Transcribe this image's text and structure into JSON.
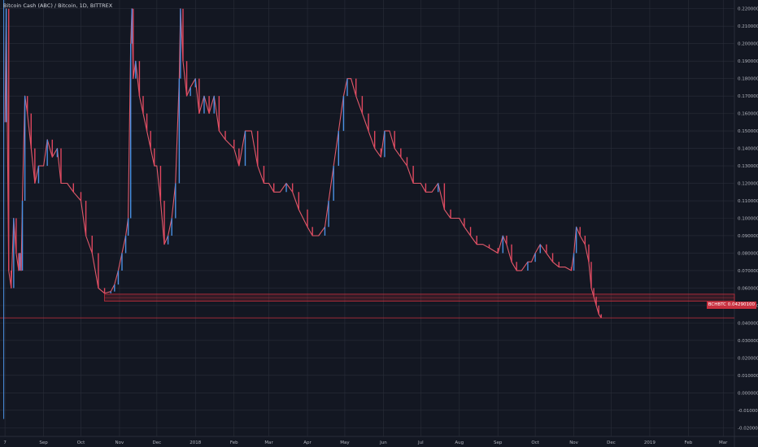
{
  "legend": "Bitcoin Cash (ABC) / Bitcoin, 1D, BITTREX",
  "price_tag": {
    "symbol": "BCHBTC",
    "value": "0.04290100"
  },
  "colors": {
    "background": "#131722",
    "grid": "#2a2e39",
    "up": "#4a90e2",
    "down": "#e0465e",
    "line": "#e05a6b",
    "zone": "#c8303f",
    "text": "#b2b5be"
  },
  "chart_data": {
    "type": "line",
    "title": "Bitcoin Cash (ABC) / Bitcoin, 1D, BITTREX",
    "xlabel": "",
    "ylabel": "",
    "y_range": [
      -0.025,
      0.225
    ],
    "x_range": [
      "2017-07-28",
      "2019-03-10"
    ],
    "x_ticks": [
      {
        "label": "7",
        "date": "2017-08-01"
      },
      {
        "label": "Sep",
        "date": "2017-09-01"
      },
      {
        "label": "Oct",
        "date": "2017-10-01"
      },
      {
        "label": "Nov",
        "date": "2017-11-01"
      },
      {
        "label": "Dec",
        "date": "2017-12-01"
      },
      {
        "label": "2018",
        "date": "2018-01-01"
      },
      {
        "label": "Feb",
        "date": "2018-02-01"
      },
      {
        "label": "Mar",
        "date": "2018-03-01"
      },
      {
        "label": "Apr",
        "date": "2018-04-01"
      },
      {
        "label": "May",
        "date": "2018-05-01"
      },
      {
        "label": "Jun",
        "date": "2018-06-01"
      },
      {
        "label": "Jul",
        "date": "2018-07-01"
      },
      {
        "label": "Aug",
        "date": "2018-08-01"
      },
      {
        "label": "Sep",
        "date": "2018-09-01"
      },
      {
        "label": "Oct",
        "date": "2018-10-01"
      },
      {
        "label": "Nov",
        "date": "2018-11-01"
      },
      {
        "label": "Dec",
        "date": "2018-12-01"
      },
      {
        "label": "2019",
        "date": "2019-01-01"
      },
      {
        "label": "Feb",
        "date": "2019-02-01"
      },
      {
        "label": "Mar",
        "date": "2019-03-01"
      }
    ],
    "y_ticks": [
      {
        "label": "0.22000000",
        "value": 0.22
      },
      {
        "label": "0.21000000",
        "value": 0.21
      },
      {
        "label": "0.20000000",
        "value": 0.2
      },
      {
        "label": "0.19000000",
        "value": 0.19
      },
      {
        "label": "0.18000000",
        "value": 0.18
      },
      {
        "label": "0.17000000",
        "value": 0.17
      },
      {
        "label": "0.16000000",
        "value": 0.16
      },
      {
        "label": "0.15000000",
        "value": 0.15
      },
      {
        "label": "0.14000000",
        "value": 0.14
      },
      {
        "label": "0.13000000",
        "value": 0.13
      },
      {
        "label": "0.12000000",
        "value": 0.12
      },
      {
        "label": "0.11000000",
        "value": 0.11
      },
      {
        "label": "0.10000000",
        "value": 0.1
      },
      {
        "label": "0.09000000",
        "value": 0.09
      },
      {
        "label": "0.08000000",
        "value": 0.08
      },
      {
        "label": "0.07000000",
        "value": 0.07
      },
      {
        "label": "0.06000000",
        "value": 0.06
      },
      {
        "label": "0.05000000",
        "value": 0.05
      },
      {
        "label": "0.04000000",
        "value": 0.04
      },
      {
        "label": "0.03000000",
        "value": 0.03
      },
      {
        "label": "0.02000000",
        "value": 0.02
      },
      {
        "label": "0.01000000",
        "value": 0.01
      },
      {
        "label": "0.00000000",
        "value": 0.0
      },
      {
        "label": "-0.01000000",
        "value": -0.01
      },
      {
        "label": "-0.02000000",
        "value": -0.02
      }
    ],
    "support_zone": [
      0.0525,
      0.0565
    ],
    "current_price_line": 0.0429,
    "series": [
      {
        "points": [
          [
            "2017-08-01",
            0.155
          ],
          [
            "2017-08-02",
            0.22
          ],
          [
            "2017-08-04",
            0.07
          ],
          [
            "2017-08-06",
            0.06
          ],
          [
            "2017-08-08",
            0.1
          ],
          [
            "2017-08-10",
            0.08
          ],
          [
            "2017-08-12",
            0.07
          ],
          [
            "2017-08-13",
            0.08
          ],
          [
            "2017-08-14",
            0.07
          ],
          [
            "2017-08-15",
            0.11
          ],
          [
            "2017-08-17",
            0.17
          ],
          [
            "2017-08-19",
            0.16
          ],
          [
            "2017-08-22",
            0.14
          ],
          [
            "2017-08-25",
            0.12
          ],
          [
            "2017-08-28",
            0.13
          ],
          [
            "2017-09-01",
            0.13
          ],
          [
            "2017-09-04",
            0.145
          ],
          [
            "2017-09-08",
            0.135
          ],
          [
            "2017-09-12",
            0.14
          ],
          [
            "2017-09-15",
            0.12
          ],
          [
            "2017-09-20",
            0.12
          ],
          [
            "2017-09-25",
            0.115
          ],
          [
            "2017-10-01",
            0.11
          ],
          [
            "2017-10-05",
            0.09
          ],
          [
            "2017-10-10",
            0.08
          ],
          [
            "2017-10-15",
            0.06
          ],
          [
            "2017-10-20",
            0.057
          ],
          [
            "2017-10-25",
            0.058
          ],
          [
            "2017-10-28",
            0.062
          ],
          [
            "2017-10-31",
            0.07
          ],
          [
            "2017-11-03",
            0.08
          ],
          [
            "2017-11-06",
            0.09
          ],
          [
            "2017-11-08",
            0.1
          ],
          [
            "2017-11-10",
            0.2
          ],
          [
            "2017-11-11",
            0.22
          ],
          [
            "2017-11-12",
            0.18
          ],
          [
            "2017-11-14",
            0.19
          ],
          [
            "2017-11-17",
            0.17
          ],
          [
            "2017-11-20",
            0.16
          ],
          [
            "2017-11-23",
            0.15
          ],
          [
            "2017-11-26",
            0.14
          ],
          [
            "2017-11-29",
            0.13
          ],
          [
            "2017-12-01",
            0.13
          ],
          [
            "2017-12-04",
            0.11
          ],
          [
            "2017-12-07",
            0.085
          ],
          [
            "2017-12-10",
            0.09
          ],
          [
            "2017-12-13",
            0.1
          ],
          [
            "2017-12-16",
            0.12
          ],
          [
            "2017-12-19",
            0.18
          ],
          [
            "2017-12-20",
            0.22
          ],
          [
            "2017-12-22",
            0.19
          ],
          [
            "2017-12-25",
            0.17
          ],
          [
            "2017-12-28",
            0.175
          ],
          [
            "2018-01-01",
            0.18
          ],
          [
            "2018-01-04",
            0.16
          ],
          [
            "2018-01-08",
            0.17
          ],
          [
            "2018-01-12",
            0.16
          ],
          [
            "2018-01-16",
            0.17
          ],
          [
            "2018-01-20",
            0.15
          ],
          [
            "2018-01-25",
            0.145
          ],
          [
            "2018-02-01",
            0.14
          ],
          [
            "2018-02-05",
            0.13
          ],
          [
            "2018-02-10",
            0.15
          ],
          [
            "2018-02-15",
            0.15
          ],
          [
            "2018-02-20",
            0.13
          ],
          [
            "2018-02-25",
            0.12
          ],
          [
            "2018-03-01",
            0.12
          ],
          [
            "2018-03-05",
            0.115
          ],
          [
            "2018-03-10",
            0.115
          ],
          [
            "2018-03-15",
            0.12
          ],
          [
            "2018-03-20",
            0.115
          ],
          [
            "2018-03-25",
            0.105
          ],
          [
            "2018-04-01",
            0.095
          ],
          [
            "2018-04-05",
            0.09
          ],
          [
            "2018-04-10",
            0.09
          ],
          [
            "2018-04-15",
            0.095
          ],
          [
            "2018-04-18",
            0.11
          ],
          [
            "2018-04-22",
            0.13
          ],
          [
            "2018-04-26",
            0.15
          ],
          [
            "2018-04-30",
            0.17
          ],
          [
            "2018-05-03",
            0.18
          ],
          [
            "2018-05-06",
            0.18
          ],
          [
            "2018-05-10",
            0.17
          ],
          [
            "2018-05-15",
            0.16
          ],
          [
            "2018-05-20",
            0.15
          ],
          [
            "2018-05-25",
            0.14
          ],
          [
            "2018-05-30",
            0.135
          ],
          [
            "2018-06-02",
            0.15
          ],
          [
            "2018-06-06",
            0.15
          ],
          [
            "2018-06-10",
            0.14
          ],
          [
            "2018-06-15",
            0.135
          ],
          [
            "2018-06-20",
            0.13
          ],
          [
            "2018-06-25",
            0.12
          ],
          [
            "2018-07-01",
            0.12
          ],
          [
            "2018-07-05",
            0.115
          ],
          [
            "2018-07-10",
            0.115
          ],
          [
            "2018-07-15",
            0.12
          ],
          [
            "2018-07-20",
            0.105
          ],
          [
            "2018-07-25",
            0.1
          ],
          [
            "2018-08-01",
            0.1
          ],
          [
            "2018-08-05",
            0.095
          ],
          [
            "2018-08-10",
            0.09
          ],
          [
            "2018-08-15",
            0.085
          ],
          [
            "2018-08-20",
            0.085
          ],
          [
            "2018-08-25",
            0.083
          ],
          [
            "2018-09-01",
            0.08
          ],
          [
            "2018-09-05",
            0.09
          ],
          [
            "2018-09-08",
            0.085
          ],
          [
            "2018-09-12",
            0.075
          ],
          [
            "2018-09-16",
            0.07
          ],
          [
            "2018-09-20",
            0.07
          ],
          [
            "2018-09-25",
            0.075
          ],
          [
            "2018-09-28",
            0.075
          ],
          [
            "2018-10-01",
            0.08
          ],
          [
            "2018-10-05",
            0.085
          ],
          [
            "2018-10-10",
            0.08
          ],
          [
            "2018-10-15",
            0.075
          ],
          [
            "2018-10-20",
            0.072
          ],
          [
            "2018-10-25",
            0.072
          ],
          [
            "2018-10-30",
            0.07
          ],
          [
            "2018-11-01",
            0.08
          ],
          [
            "2018-11-03",
            0.095
          ],
          [
            "2018-11-06",
            0.09
          ],
          [
            "2018-11-10",
            0.085
          ],
          [
            "2018-11-13",
            0.075
          ],
          [
            "2018-11-15",
            0.06
          ],
          [
            "2018-11-17",
            0.055
          ],
          [
            "2018-11-19",
            0.05
          ],
          [
            "2018-11-21",
            0.045
          ],
          [
            "2018-11-23",
            0.0429
          ]
        ]
      }
    ],
    "grid": true
  }
}
